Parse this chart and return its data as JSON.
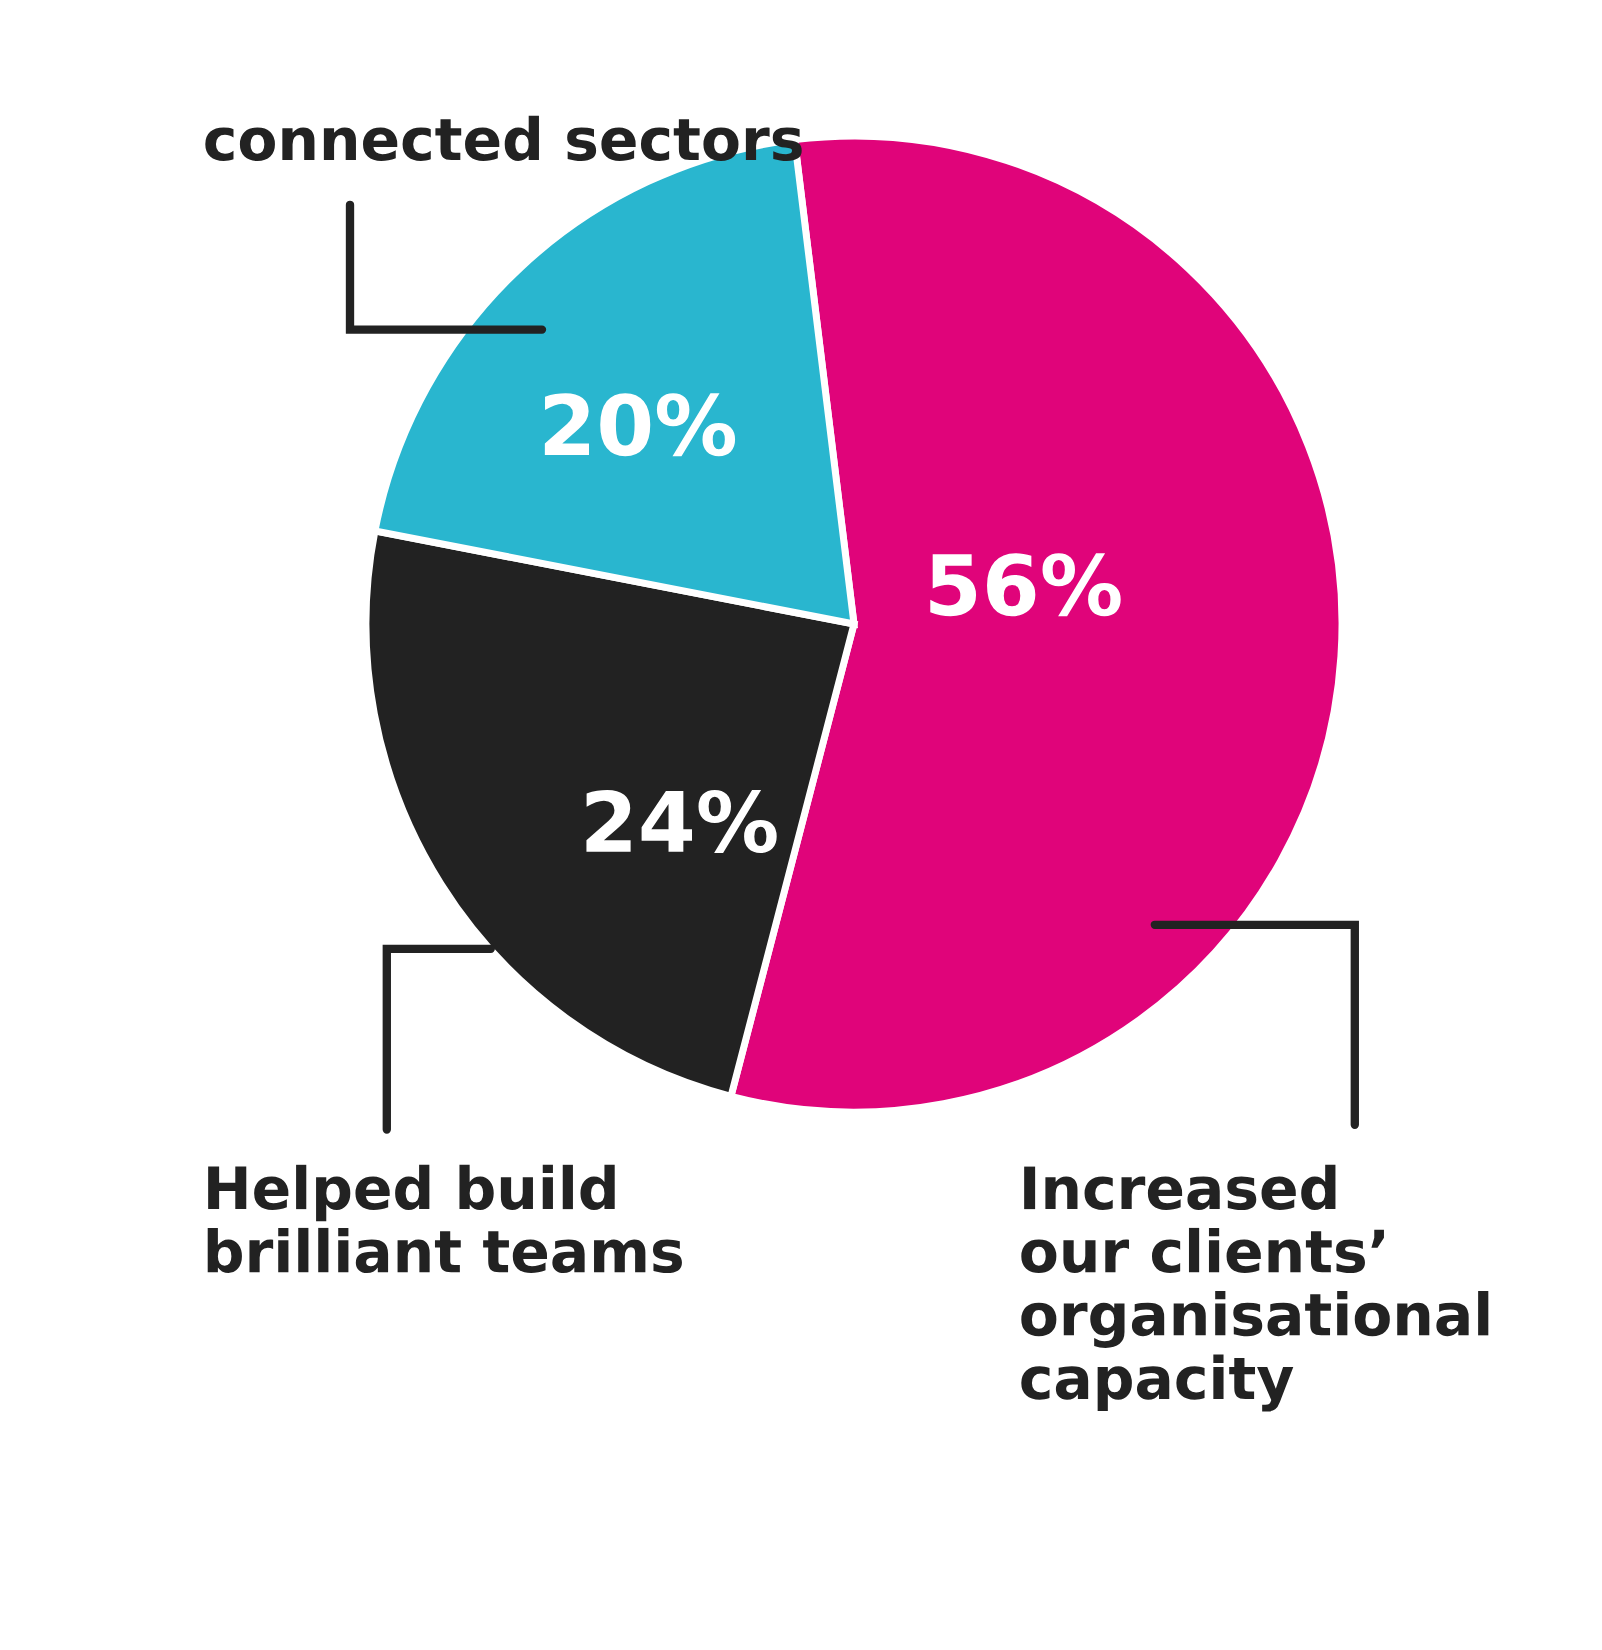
{
  "chart_data": {
    "type": "pie",
    "categories": [
      "Increased\nour clients’\norganisational\ncapacity",
      "Helped build\nbrilliant teams",
      "connected sectors"
    ],
    "values": [
      56,
      24,
      20
    ],
    "colors": [
      "#e0047a",
      "#222222",
      "#29b6cf"
    ],
    "value_labels": [
      "56%",
      "24%",
      "20%"
    ]
  }
}
